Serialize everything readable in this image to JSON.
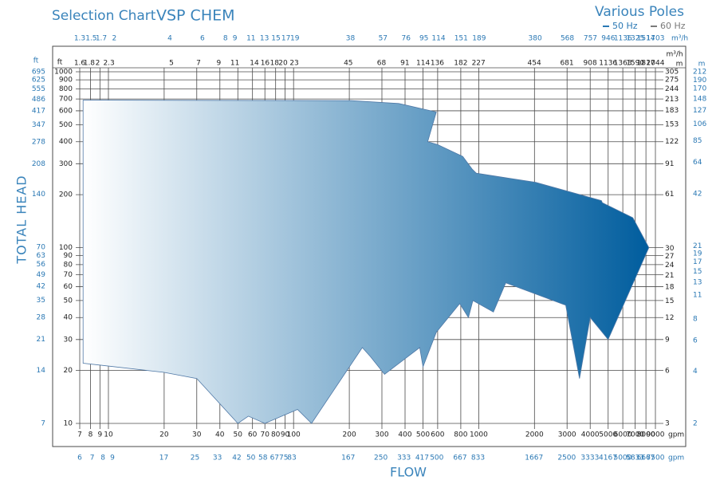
{
  "chart_data": {
    "type": "area",
    "title": "Selection Chart",
    "subtitle": "VSP CHEM",
    "legend_title": "Various Poles",
    "legend": [
      {
        "name": "50 Hz",
        "color": "#2a78b4"
      },
      {
        "name": "60 Hz",
        "color": "#7a7a7a"
      }
    ],
    "xlabel": "FLOW",
    "ylabel": "TOTAL HEAD",
    "x_log": true,
    "y_log": true,
    "color": "#005d9e",
    "x": [
      7.3,
      205,
      370,
      590,
      530,
      600,
      820,
      920,
      970,
      2030,
      4600,
      4650,
      6800,
      8300,
      5000,
      4000,
      3500,
      2950,
      1400,
      1200,
      930,
      880,
      790,
      590,
      500,
      480,
      310,
      260,
      235,
      125,
      105,
      70,
      57,
      50,
      30,
      20,
      7.3
    ],
    "values": [
      690,
      685,
      660,
      590,
      400,
      385,
      330,
      280,
      265,
      235,
      185,
      180,
      148,
      100,
      30,
      40,
      18,
      47,
      63,
      43,
      50,
      40,
      48,
      33,
      21,
      27,
      19,
      24,
      27,
      10,
      12,
      10,
      11,
      10,
      18,
      19.5,
      22
    ],
    "xlim": [
      7,
      9000
    ],
    "xticks": [
      7,
      8,
      9,
      10,
      20,
      30,
      40,
      50,
      60,
      70,
      80,
      90,
      100,
      200,
      300,
      400,
      500,
      600,
      800,
      1000,
      2000,
      3000,
      4000,
      5000,
      6000,
      7000,
      8000,
      9000
    ],
    "x_unit": "gpm",
    "ylim": [
      10,
      1000
    ],
    "yticks": [
      10,
      20,
      30,
      40,
      50,
      60,
      70,
      80,
      90,
      100,
      200,
      300,
      400,
      500,
      600,
      700,
      800,
      900,
      1000
    ],
    "y_unit": "ft",
    "secondary_axes": [
      {
        "side": "top",
        "unit": "m³/h",
        "color": "#2a78b4",
        "lim": [
          1.3,
          1703
        ],
        "ticks": [
          1.3,
          1.5,
          1.7,
          2,
          4,
          6,
          8,
          9,
          11,
          13,
          15,
          17,
          19,
          38,
          57,
          76,
          95,
          114,
          151,
          189,
          380,
          568,
          757,
          946,
          1136,
          1325,
          1514,
          1703
        ]
      },
      {
        "side": "top-inner",
        "unit": "m³/h",
        "color": "#222222",
        "lim": [
          1.6,
          2044
        ],
        "ticks": [
          1.6,
          1.8,
          2,
          2.3,
          5,
          7,
          9,
          11,
          14,
          16,
          18,
          20,
          23,
          45,
          68,
          91,
          114,
          136,
          182,
          227,
          454,
          681,
          908,
          1136,
          1363,
          1590,
          1817,
          2044
        ]
      },
      {
        "side": "bottom",
        "unit": "gpm",
        "color": "#2a78b4",
        "lim": [
          6,
          7500
        ],
        "ticks": [
          6,
          7,
          8,
          9,
          17,
          25,
          33,
          42,
          50,
          58,
          67,
          75,
          83,
          167,
          250,
          333,
          417,
          500,
          667,
          833,
          1667,
          2500,
          3333,
          4167,
          5000,
          5833,
          6667,
          7500
        ]
      },
      {
        "side": "left",
        "unit": "ft",
        "color": "#2a78b4",
        "lim": [
          7,
          695
        ],
        "ticks": [
          7,
          14,
          21,
          28,
          35,
          42,
          49,
          56,
          63,
          70,
          140,
          208,
          278,
          347,
          417,
          486,
          555,
          625,
          695
        ]
      },
      {
        "side": "right-inner",
        "unit": "m",
        "color": "#222222",
        "lim": [
          3,
          305
        ],
        "ticks": [
          3,
          6,
          9,
          12,
          15,
          18,
          21,
          24,
          27,
          30,
          61,
          91,
          122,
          153,
          183,
          213,
          244,
          275,
          305
        ]
      },
      {
        "side": "right",
        "unit": "m",
        "color": "#2a78b4",
        "lim": [
          2,
          212
        ],
        "ticks": [
          2,
          4,
          6,
          8,
          11,
          13,
          15,
          17,
          19,
          21,
          42,
          64,
          85,
          106,
          127,
          148,
          170,
          190,
          212
        ]
      }
    ]
  }
}
